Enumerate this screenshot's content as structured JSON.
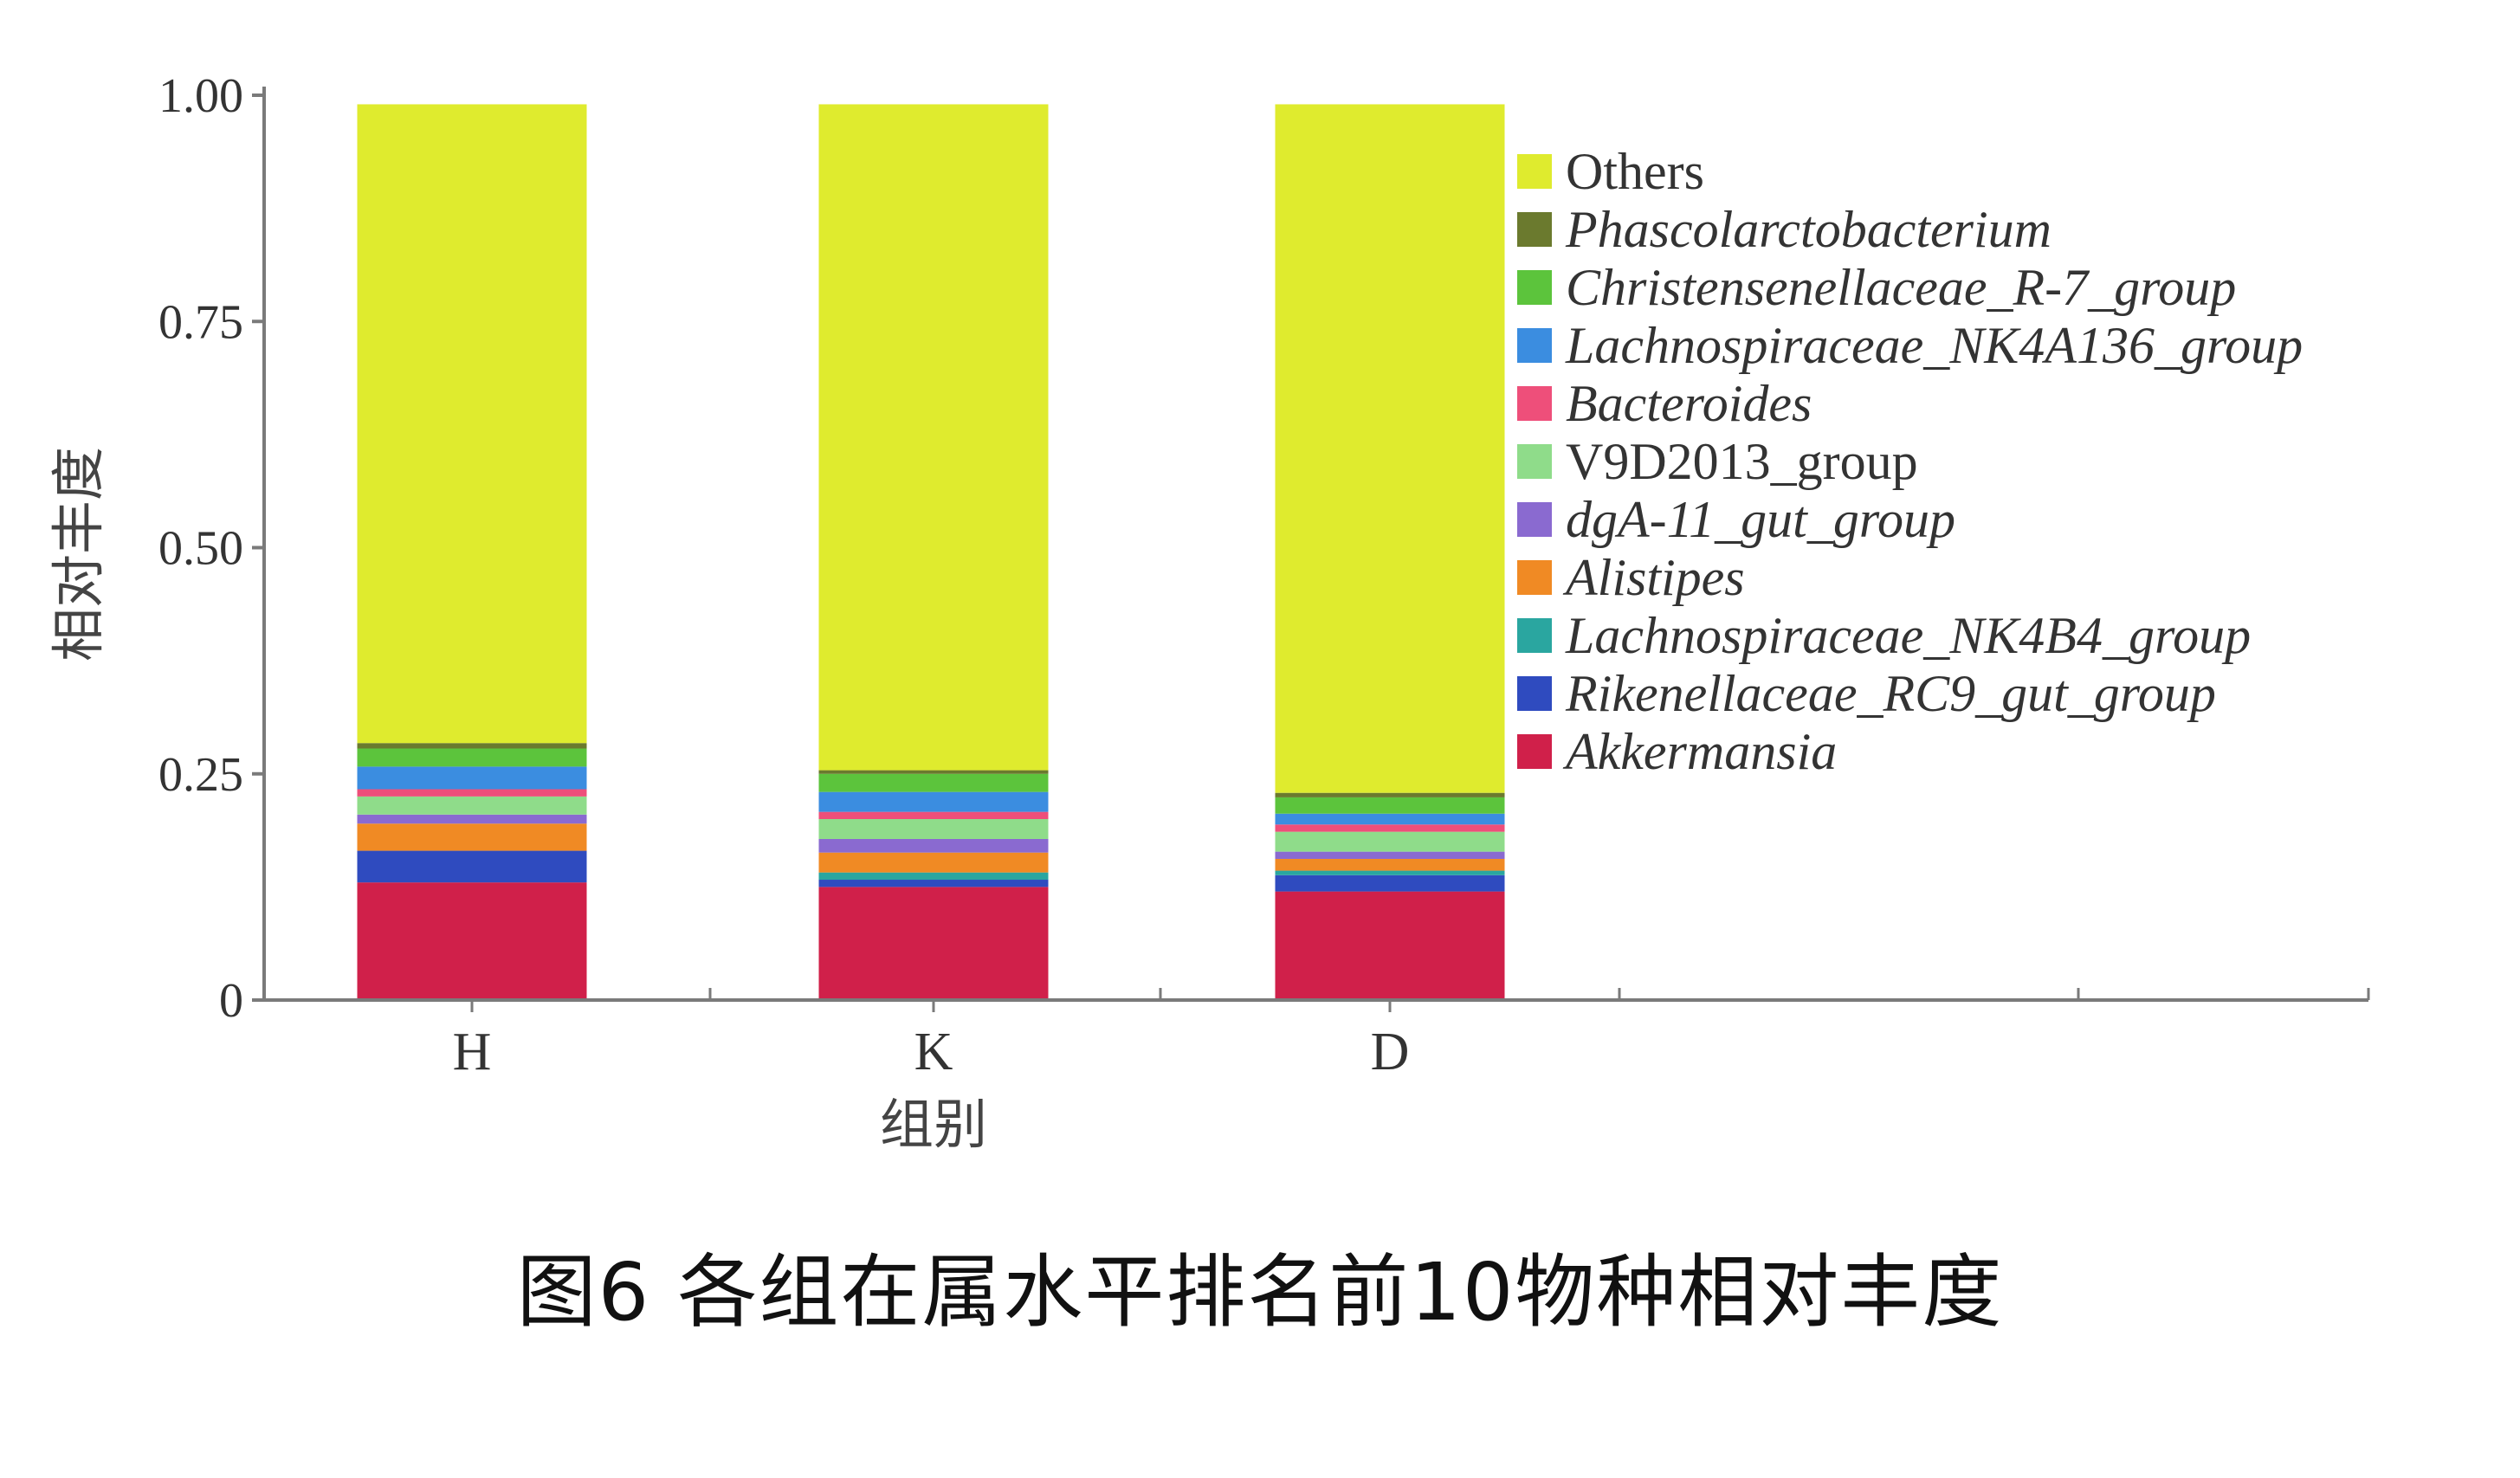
{
  "caption": "图6 各组在属水平排名前10物种相对丰度",
  "chart_data": {
    "type": "bar",
    "stacked": true,
    "xlabel": "组别",
    "ylabel": "相对丰度",
    "ylim": [
      0,
      1.0
    ],
    "yticks": [
      0,
      0.25,
      0.5,
      0.75,
      1.0
    ],
    "ytick_labels": [
      "0",
      "0.25",
      "0.50",
      "0.75",
      "1.00"
    ],
    "categories": [
      "H",
      "K",
      "D"
    ],
    "legend_position": "right",
    "series": [
      {
        "name": "Akkermansia",
        "italic": true,
        "color": "#d0204a",
        "values": [
          0.13,
          0.125,
          0.12
        ]
      },
      {
        "name": "Rikenellaceae_RC9_gut_group",
        "italic": true,
        "color": "#2f4bbf",
        "values": [
          0.035,
          0.008,
          0.018
        ]
      },
      {
        "name": "Lachnospiraceae_NK4B4_group",
        "italic": true,
        "color": "#2aa6a0",
        "values": [
          0.0,
          0.008,
          0.005
        ]
      },
      {
        "name": "Alistipes",
        "italic": true,
        "color": "#f08a24",
        "values": [
          0.03,
          0.022,
          0.013
        ]
      },
      {
        "name": "dgA-11_gut_group",
        "italic": true,
        "color": "#8a6ad0",
        "values": [
          0.01,
          0.015,
          0.008
        ]
      },
      {
        "name": "V9D2013_group",
        "italic": false,
        "color": "#8fdc8a",
        "values": [
          0.02,
          0.022,
          0.022
        ]
      },
      {
        "name": "Bacteroides",
        "italic": true,
        "color": "#ee4f7a",
        "values": [
          0.008,
          0.008,
          0.008
        ]
      },
      {
        "name": "Lachnospiraceae_NK4A136_group",
        "italic": true,
        "color": "#3b8de0",
        "values": [
          0.025,
          0.022,
          0.012
        ]
      },
      {
        "name": "Christensenellaceae_R-7_group",
        "italic": true,
        "color": "#5cc43c",
        "values": [
          0.02,
          0.02,
          0.018
        ]
      },
      {
        "name": "Phascolarctobacterium",
        "italic": true,
        "color": "#6b7a2e",
        "values": [
          0.006,
          0.004,
          0.005
        ]
      },
      {
        "name": "Others",
        "italic": false,
        "color": "#dfeb2e",
        "values": [
          0.706,
          0.736,
          0.761
        ]
      }
    ]
  }
}
